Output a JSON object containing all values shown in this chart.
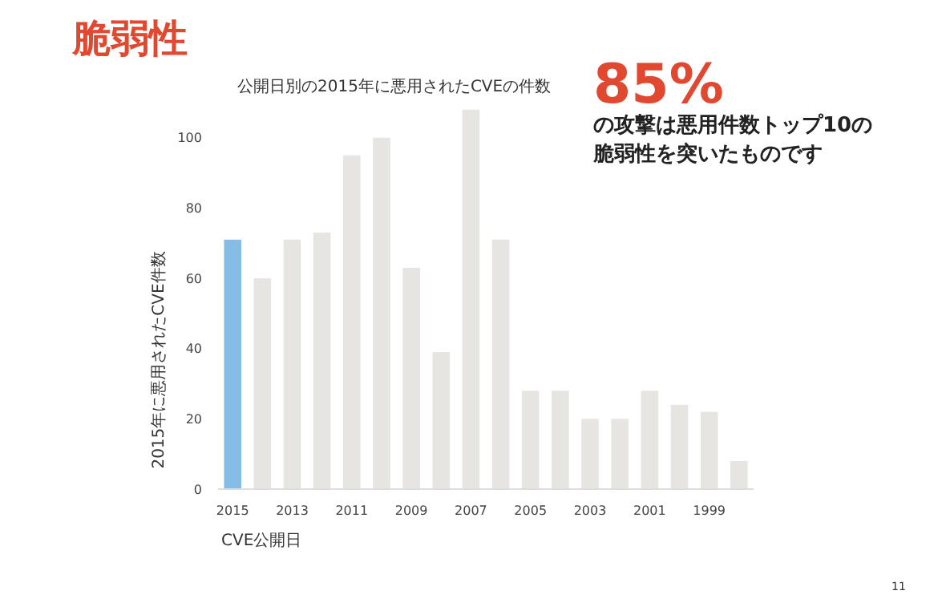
{
  "chart_data": {
    "type": "bar",
    "title": "脆弱性",
    "subtitle": "公開日別の2015年に悪用されたCVEの件数",
    "xlabel": "CVE公開日",
    "ylabel": "2015年に悪用されたCVE件数",
    "annotations": [
      "85%",
      "の攻撃は悪用件数トップ10の",
      "脆弱性を突いたものです",
      "11"
    ],
    "categories": [
      "2015",
      null,
      "2013",
      null,
      "2011",
      null,
      "2009",
      null,
      "2007",
      null,
      "2005",
      null,
      "2003",
      null,
      "2001",
      null,
      "1999",
      null
    ],
    "values": [
      71,
      60,
      71,
      73,
      95,
      100,
      63,
      39,
      108,
      71,
      28,
      28,
      20,
      20,
      28,
      24,
      22,
      8
    ],
    "colors": [
      "#86bde6",
      "#e7e5e1",
      "#e7e5e1",
      "#e7e5e1",
      "#e7e5e1",
      "#e7e5e1",
      "#e7e5e1",
      "#e7e5e1",
      "#e7e5e1",
      "#e7e5e1",
      "#e7e5e1",
      "#e7e5e1",
      "#e7e5e1",
      "#e7e5e1",
      "#e7e5e1",
      "#e7e5e1",
      "#e7e5e1",
      "#e7e5e1"
    ],
    "ylim": [
      0,
      110
    ],
    "yticks": [
      0,
      20,
      40,
      60,
      80,
      100
    ]
  }
}
